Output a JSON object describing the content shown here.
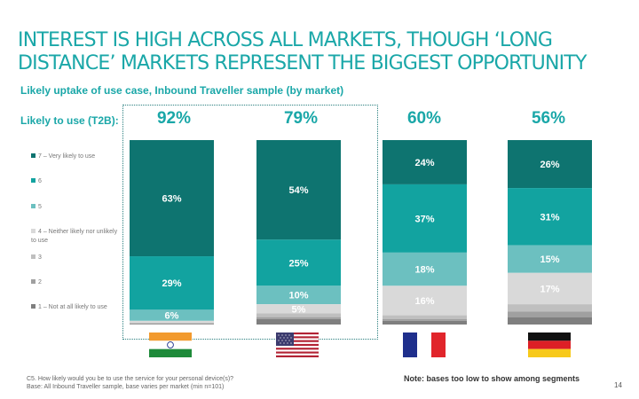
{
  "slide": {
    "title_line1": "INTEREST IS HIGH ACROSS ALL MARKETS, THOUGH ‘LONG",
    "title_line2": "DISTANCE’ MARKETS REPRESENT THE BIGGEST OPPORTUNITY",
    "subtitle": "Likely uptake of use case, Inbound Traveller sample (by market)",
    "t2b_label": "Likely to use (T2B):",
    "footnote_line1": "C5. How likely would you be to use the service for your personal device(s)?",
    "footnote_line2": "Base: All Inbound Traveller sample, base varies per market (min n=101)",
    "note": "Note: bases too low to show among segments",
    "page_number": "14"
  },
  "flags": [
    {
      "icon": "india-flag-icon"
    },
    {
      "icon": "usa-flag-icon"
    },
    {
      "icon": "france-flag-icon"
    },
    {
      "icon": "germany-flag-icon"
    }
  ],
  "chart_data": {
    "type": "bar",
    "stacked": true,
    "t2b": [
      "92%",
      "79%",
      "60%",
      "56%"
    ],
    "legend": [
      {
        "label": "7 – Very likely to use",
        "color": "#0e7470"
      },
      {
        "label": "6",
        "color": "#12a3a0"
      },
      {
        "label": "5",
        "color": "#6cc0c0"
      },
      {
        "label": "4 – Neither likely nor unlikely to use",
        "color": "#d9d9d9"
      },
      {
        "label": "3",
        "color": "#bfbfbf"
      },
      {
        "label": "2",
        "color": "#a0a0a0"
      },
      {
        "label": "1 – Not at all likely to use",
        "color": "#7f7f7f"
      }
    ],
    "series": [
      {
        "name": "7 – Very likely to use",
        "values": [
          63,
          54,
          24,
          26
        ]
      },
      {
        "name": "6",
        "values": [
          29,
          25,
          37,
          31
        ]
      },
      {
        "name": "5",
        "values": [
          6,
          10,
          18,
          15
        ]
      },
      {
        "name": "4 – Neither likely nor unlikely to use",
        "values": [
          1,
          5,
          16,
          17
        ]
      },
      {
        "name": "3",
        "values": [
          0.5,
          2,
          2,
          4
        ]
      },
      {
        "name": "2",
        "values": [
          0.3,
          1,
          1,
          3
        ]
      },
      {
        "name": "1 – Not at all likely to use",
        "values": [
          0.2,
          3,
          2,
          4
        ]
      }
    ],
    "data_labels": [
      [
        "63%",
        "29%",
        "6%",
        "",
        "",
        "",
        ""
      ],
      [
        "54%",
        "25%",
        "10%",
        "5%",
        "",
        "",
        ""
      ],
      [
        "24%",
        "37%",
        "18%",
        "16%",
        "",
        "",
        ""
      ],
      [
        "26%",
        "31%",
        "15%",
        "17%",
        "",
        "",
        ""
      ]
    ],
    "ylim": [
      0,
      100
    ]
  }
}
